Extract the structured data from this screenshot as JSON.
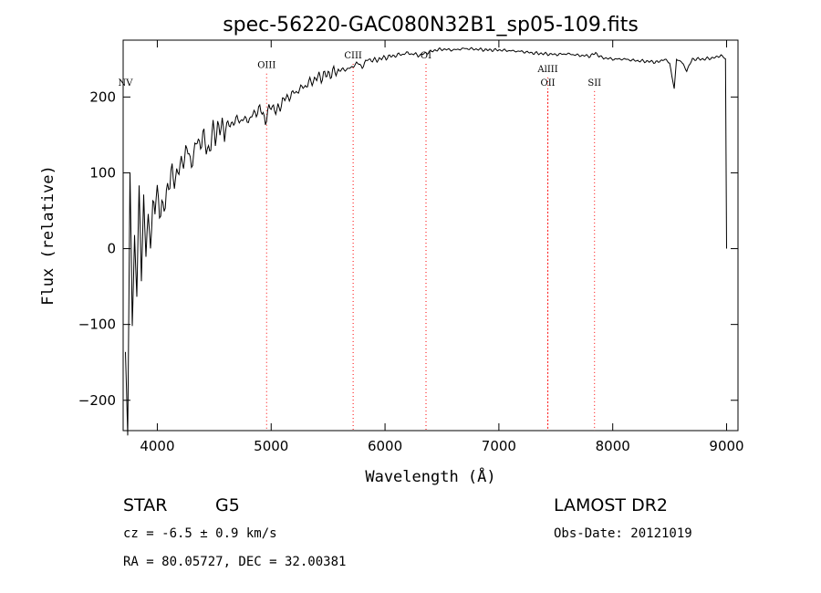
{
  "info": {
    "class_label": "STAR",
    "subclass_label": "G5",
    "survey_label": "LAMOST DR2",
    "cz_text": "cz = -6.5 ± 0.9 km/s",
    "obs_date_text": "Obs-Date: 20121019",
    "coords_text": "RA =  80.05727, DEC =  32.00381"
  },
  "chart_data": {
    "type": "line",
    "title": "spec-56220-GAC080N32B1_sp05-109.fits",
    "xlabel": "Wavelength (Å)",
    "ylabel": "Flux (relative)",
    "xlim": [
      3700,
      9100
    ],
    "ylim": [
      -240,
      275
    ],
    "x_ticks": [
      4000,
      5000,
      6000,
      7000,
      8000,
      9000
    ],
    "y_ticks": [
      -200,
      -100,
      0,
      100,
      200
    ],
    "grid": false,
    "legend": "none",
    "line_color": "#000000",
    "marker_color": "#ff0000",
    "spectral_lines": [
      {
        "label": "NV",
        "wavelength": 3720,
        "label_flux": 215
      },
      {
        "label": "OIII",
        "wavelength": 4960,
        "label_flux": 238
      },
      {
        "label": "CIII",
        "wavelength": 5720,
        "label_flux": 251
      },
      {
        "label": "OI",
        "wavelength": 6360,
        "label_flux": 251
      },
      {
        "label": "AlIII",
        "wavelength": 7430,
        "label_flux": 233
      },
      {
        "label": "OII",
        "wavelength": 7430,
        "label_flux": 215
      },
      {
        "label": "SII",
        "wavelength": 7840,
        "label_flux": 215
      }
    ],
    "series": [
      {
        "x": [
          3720,
          3740,
          3760,
          3780,
          3800,
          3820,
          3840,
          3860,
          3880,
          3900,
          3950,
          4000,
          4050,
          4100,
          4150,
          4200,
          4250,
          4300,
          4350,
          4400,
          4450,
          4500,
          4600,
          4700,
          4800,
          4900,
          4950,
          5000,
          5050,
          5100,
          5200,
          5300,
          5400,
          5500,
          5600,
          5700,
          5750,
          5800,
          5850,
          5900,
          6000,
          6100,
          6200,
          6300,
          6400,
          6450,
          6500,
          6600,
          6700,
          6800,
          6900,
          7000,
          7100,
          7200,
          7300,
          7400,
          7500,
          7600,
          7700,
          7800,
          7850,
          7900,
          8000,
          8100,
          8200,
          8300,
          8400,
          8450,
          8500,
          8540,
          8560,
          8600,
          8650,
          8700,
          8800,
          8900,
          8950,
          8990,
          9000
        ],
        "y": [
          -150,
          -220,
          80,
          -100,
          20,
          -50,
          60,
          -30,
          70,
          0,
          40,
          70,
          45,
          90,
          95,
          105,
          130,
          115,
          140,
          145,
          130,
          155,
          160,
          170,
          170,
          185,
          170,
          190,
          180,
          195,
          205,
          215,
          225,
          230,
          235,
          238,
          245,
          240,
          250,
          248,
          252,
          255,
          258,
          255,
          260,
          262,
          263,
          262,
          264,
          263,
          262,
          262,
          261,
          260,
          258,
          257,
          256,
          257,
          255,
          254,
          258,
          252,
          250,
          250,
          248,
          247,
          246,
          250,
          245,
          210,
          250,
          247,
          235,
          250,
          250,
          252,
          255,
          250,
          0
        ]
      }
    ]
  }
}
